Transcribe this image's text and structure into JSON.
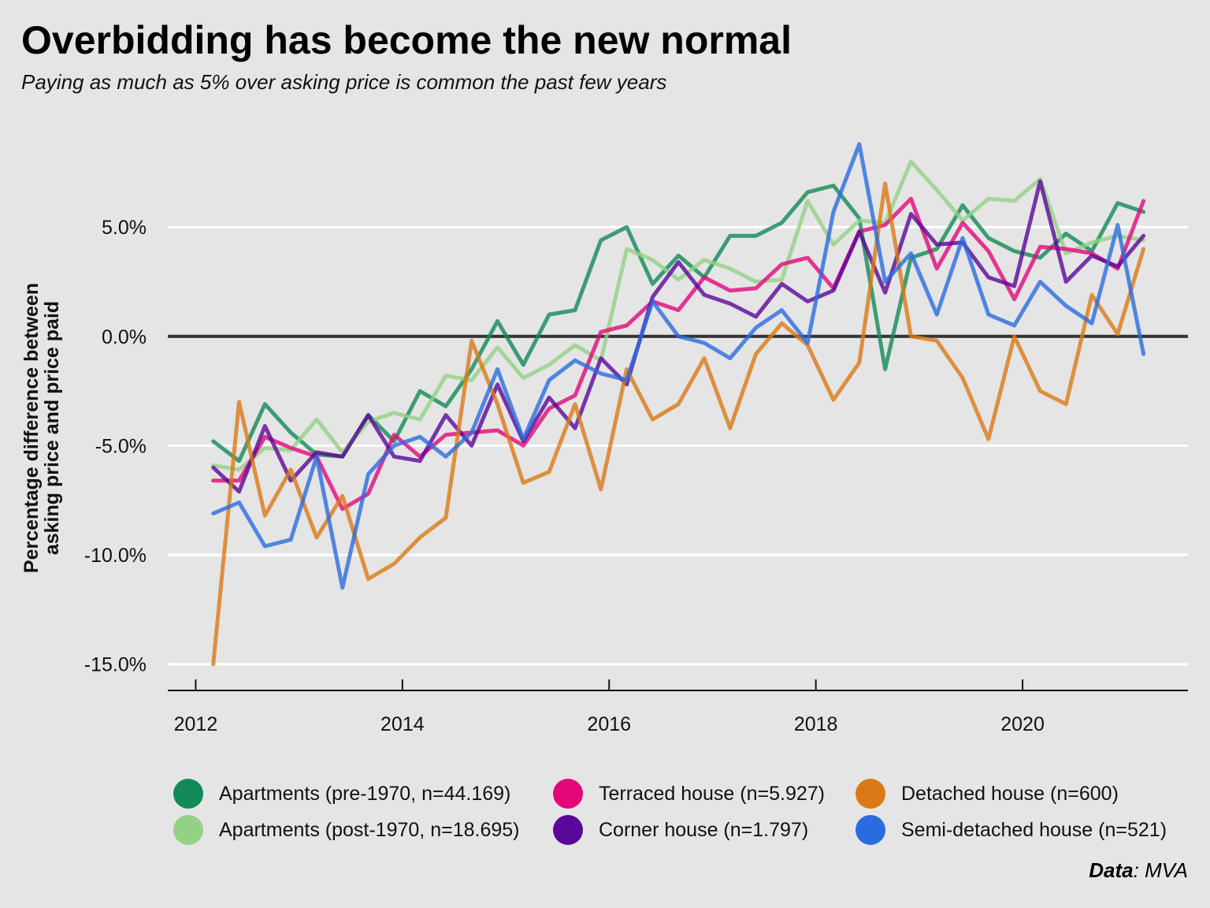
{
  "chart_data": {
    "type": "line",
    "title": "Overbidding has become the new normal",
    "subtitle": "Paying as much as 5% over asking price is common the past few years",
    "ylabel_line1": "Percentage difference between",
    "ylabel_line2": "asking price and price paid",
    "xlabel": "",
    "source_label": "Data",
    "source_text": ": MVA",
    "xlim": [
      2011.73,
      2021.6
    ],
    "ylim": [
      -16.2,
      8.9
    ],
    "x_ticks": [
      2012,
      2014,
      2016,
      2018,
      2020
    ],
    "y_ticks": [
      5,
      0,
      -5,
      -10,
      -15
    ],
    "y_tick_labels": [
      "5.0%",
      "0.0%",
      "-5.0%",
      "-10.0%",
      "-15.0%"
    ],
    "grid": "horizontal",
    "legend_position": "bottom",
    "x": [
      2012.17,
      2012.42,
      2012.67,
      2012.92,
      2013.17,
      2013.42,
      2013.67,
      2013.92,
      2014.17,
      2014.42,
      2014.67,
      2014.92,
      2015.17,
      2015.42,
      2015.67,
      2015.92,
      2016.17,
      2016.42,
      2016.67,
      2016.92,
      2017.17,
      2017.42,
      2017.67,
      2017.92,
      2018.17,
      2018.42,
      2018.67,
      2018.92,
      2019.17,
      2019.42,
      2019.67,
      2019.92,
      2020.17,
      2020.42,
      2020.67,
      2020.92,
      2021.17
    ],
    "series": [
      {
        "name": "Apartments (pre-1970, n=44.169)",
        "color": "#118a58",
        "values": [
          -4.8,
          -5.7,
          -3.1,
          -4.4,
          -5.4,
          -5.5,
          -3.6,
          -4.8,
          -2.5,
          -3.2,
          -1.5,
          0.7,
          -1.3,
          1.0,
          1.2,
          4.4,
          5.0,
          2.4,
          3.7,
          2.7,
          4.6,
          4.6,
          5.2,
          6.6,
          6.9,
          5.4,
          -1.5,
          3.6,
          4.0,
          6.0,
          4.5,
          3.9,
          3.6,
          4.7,
          3.9,
          6.1,
          5.7
        ]
      },
      {
        "name": "Apartments (post-1970, n=18.695)",
        "color": "#94d185",
        "values": [
          -5.9,
          -6.1,
          -5.1,
          -5.2,
          -3.8,
          -5.3,
          -3.9,
          -3.5,
          -3.8,
          -1.8,
          -2.0,
          -0.5,
          -1.9,
          -1.3,
          -0.4,
          -1.1,
          4.0,
          3.5,
          2.6,
          3.5,
          3.1,
          2.5,
          2.6,
          6.2,
          4.2,
          5.3,
          5.2,
          8.0,
          6.7,
          5.3,
          6.3,
          6.2,
          7.2,
          3.8,
          4.3,
          4.6,
          4.4
        ]
      },
      {
        "name": "Terraced house (n=5.927)",
        "color": "#e2087a",
        "values": [
          -6.6,
          -6.6,
          -4.6,
          -5.1,
          -5.5,
          -7.9,
          -7.2,
          -4.5,
          -5.5,
          -4.5,
          -4.4,
          -4.3,
          -5.0,
          -3.3,
          -2.7,
          0.2,
          0.5,
          1.6,
          1.2,
          2.7,
          2.1,
          2.2,
          3.3,
          3.6,
          2.2,
          4.8,
          5.1,
          6.3,
          3.1,
          5.2,
          3.9,
          1.7,
          4.1,
          4.0,
          3.8,
          3.1,
          6.2
        ]
      },
      {
        "name": "Corner house (n=1.797)",
        "color": "#5a0898",
        "values": [
          -6.0,
          -7.1,
          -4.1,
          -6.6,
          -5.3,
          -5.5,
          -3.6,
          -5.5,
          -5.7,
          -3.6,
          -5.0,
          -2.2,
          -4.8,
          -2.8,
          -4.2,
          -1.0,
          -2.2,
          1.8,
          3.4,
          1.9,
          1.5,
          0.9,
          2.4,
          1.6,
          2.1,
          4.8,
          2.0,
          5.6,
          4.2,
          4.3,
          2.7,
          2.3,
          7.1,
          2.5,
          3.7,
          3.2,
          4.6
        ]
      },
      {
        "name": "Detached house (n=600)",
        "color": "#db7916",
        "values": [
          -15.0,
          -3.0,
          -8.2,
          -6.1,
          -9.2,
          -7.3,
          -11.1,
          -10.4,
          -9.2,
          -8.3,
          -0.2,
          -3.1,
          -6.7,
          -6.2,
          -3.1,
          -7.0,
          -1.5,
          -3.8,
          -3.1,
          -1.0,
          -4.2,
          -0.8,
          0.6,
          -0.4,
          -2.9,
          -1.2,
          7.0,
          0.0,
          -0.2,
          -1.9,
          -4.7,
          0.0,
          -2.5,
          -3.1,
          1.9,
          0.1,
          4.0
        ]
      },
      {
        "name": "Semi-detached house (n=521)",
        "color": "#2b6be0",
        "values": [
          -8.1,
          -7.6,
          -9.6,
          -9.3,
          -5.5,
          -11.5,
          -6.3,
          -5.0,
          -4.6,
          -5.5,
          -4.4,
          -1.5,
          -4.7,
          -2.0,
          -1.1,
          -1.7,
          -2.0,
          1.6,
          0.0,
          -0.3,
          -1.0,
          0.4,
          1.2,
          -0.3,
          5.7,
          8.8,
          2.5,
          3.8,
          1.0,
          4.5,
          1.0,
          0.5,
          2.5,
          1.4,
          0.6,
          5.1,
          -0.8
        ]
      }
    ]
  }
}
